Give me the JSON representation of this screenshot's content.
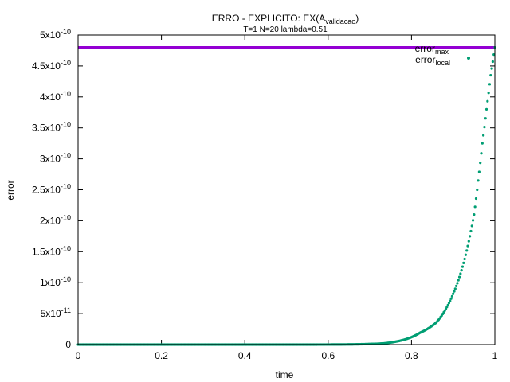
{
  "chart_data": {
    "type": "scatter",
    "title": "ERRO - EXPLICITO: EX(A",
    "title_subscript": "validacao",
    "title_suffix": ")",
    "subtitle": "T=1 N=20 lambda=0.51",
    "xlabel": "time",
    "ylabel": "error",
    "xlim": [
      0,
      1
    ],
    "ylim": [
      0,
      5e-10
    ],
    "x_ticks": [
      {
        "value": 0,
        "label": "0"
      },
      {
        "value": 0.2,
        "label": "0.2"
      },
      {
        "value": 0.4,
        "label": "0.4"
      },
      {
        "value": 0.6,
        "label": "0.6"
      },
      {
        "value": 0.8,
        "label": "0.8"
      },
      {
        "value": 1,
        "label": "1"
      }
    ],
    "y_ticks": [
      {
        "value": 0,
        "mantissa": "0",
        "exponent": ""
      },
      {
        "value": 5e-11,
        "mantissa": "5x10",
        "exponent": "-11"
      },
      {
        "value": 1e-10,
        "mantissa": "1x10",
        "exponent": "-10"
      },
      {
        "value": 1.5e-10,
        "mantissa": "1.5x10",
        "exponent": "-10"
      },
      {
        "value": 2e-10,
        "mantissa": "2x10",
        "exponent": "-10"
      },
      {
        "value": 2.5e-10,
        "mantissa": "2.5x10",
        "exponent": "-10"
      },
      {
        "value": 3e-10,
        "mantissa": "3x10",
        "exponent": "-10"
      },
      {
        "value": 3.5e-10,
        "mantissa": "3.5x10",
        "exponent": "-10"
      },
      {
        "value": 4e-10,
        "mantissa": "4x10",
        "exponent": "-10"
      },
      {
        "value": 4.5e-10,
        "mantissa": "4.5x10",
        "exponent": "-10"
      },
      {
        "value": 5e-10,
        "mantissa": "5x10",
        "exponent": "-10"
      }
    ],
    "legend_position": "top-right",
    "series": [
      {
        "name": "error",
        "name_subscript": "max",
        "style": "line",
        "color": "#9400d3",
        "value": 4.8e-10
      },
      {
        "name": "error",
        "name_subscript": "local",
        "style": "points",
        "color": "#009e73",
        "points": [
          [
            0.0,
            0
          ],
          [
            0.1,
            0
          ],
          [
            0.2,
            0
          ],
          [
            0.3,
            0
          ],
          [
            0.4,
            0
          ],
          [
            0.5,
            0
          ],
          [
            0.55,
            0
          ],
          [
            0.6,
            1e-13
          ],
          [
            0.65,
            3e-13
          ],
          [
            0.7,
            1e-12
          ],
          [
            0.72,
            1.4e-12
          ],
          [
            0.74,
            2.5e-12
          ],
          [
            0.76,
            4.5e-12
          ],
          [
            0.78,
            7.5e-12
          ],
          [
            0.8,
            1.2e-11
          ],
          [
            0.82,
            1.9e-11
          ],
          [
            0.84,
            2.6e-11
          ],
          [
            0.86,
            3.6e-11
          ],
          [
            0.88,
            5.5e-11
          ],
          [
            0.9,
            8.2e-11
          ],
          [
            0.92,
            1.2e-10
          ],
          [
            0.94,
            1.75e-10
          ],
          [
            0.95,
            2.1e-10
          ],
          [
            0.96,
            2.65e-10
          ],
          [
            0.97,
            3.25e-10
          ],
          [
            0.98,
            3.8e-10
          ],
          [
            0.99,
            4.35e-10
          ],
          [
            1.0,
            4.8e-10
          ]
        ]
      }
    ]
  }
}
